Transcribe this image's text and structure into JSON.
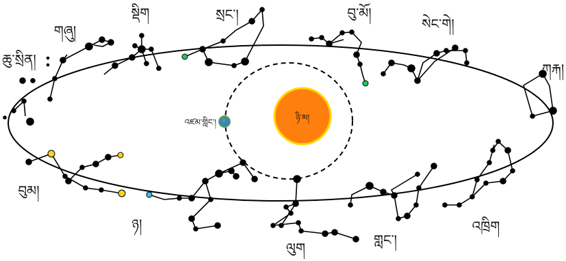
{
  "sun": {
    "label": "ཉི་མ།",
    "fill": "#ff7f0e",
    "ring": "#ffd700"
  },
  "earth": {
    "label": "འཛམ་གླིང་།"
  },
  "colors": {
    "line": "#000000",
    "highlight_yellow": "#ffd21f",
    "highlight_green": "#22c55e",
    "highlight_blue": "#38bdf8"
  },
  "constellations": [
    {
      "id": "aries",
      "label": "ལུག"
    },
    {
      "id": "taurus",
      "label": "གླང་།"
    },
    {
      "id": "gemini",
      "label": "འཁྲིག"
    },
    {
      "id": "cancer",
      "label": "ཀརྐ།"
    },
    {
      "id": "leo",
      "label": "སེང་གེ།"
    },
    {
      "id": "virgo",
      "label": "བུ་མོ།"
    },
    {
      "id": "libra",
      "label": "སྲང་།"
    },
    {
      "id": "scorpio",
      "label": "སྡིག"
    },
    {
      "id": "sagittarius",
      "label": "གཞུ།"
    },
    {
      "id": "capricorn",
      "label": "ཆུ་སྲིན།"
    },
    {
      "id": "aquarius",
      "label": "བུམ།"
    },
    {
      "id": "pisces",
      "label": "ཉ།"
    }
  ]
}
